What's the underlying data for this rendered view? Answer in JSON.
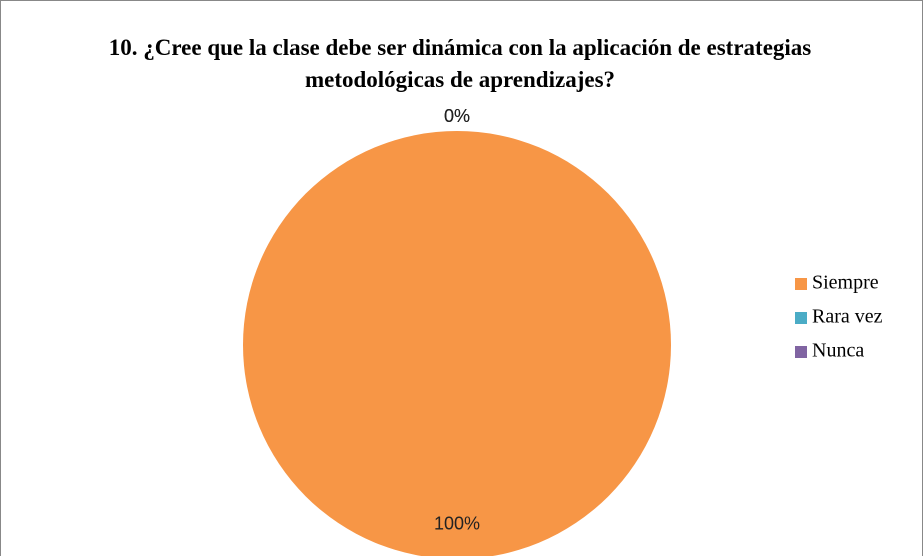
{
  "chart_data": {
    "type": "pie",
    "title": "10. ¿Cree que la clase debe ser dinámica con la aplicación de estrategias metodológicas de aprendizajes?",
    "categories": [
      "Siempre",
      "Rara vez",
      "Nunca"
    ],
    "values": [
      100,
      0,
      0
    ],
    "value_labels": [
      "100%",
      "0%",
      "0%"
    ],
    "colors": [
      "#f79646",
      "#4bacc6",
      "#8064a2"
    ],
    "legend": "right"
  }
}
